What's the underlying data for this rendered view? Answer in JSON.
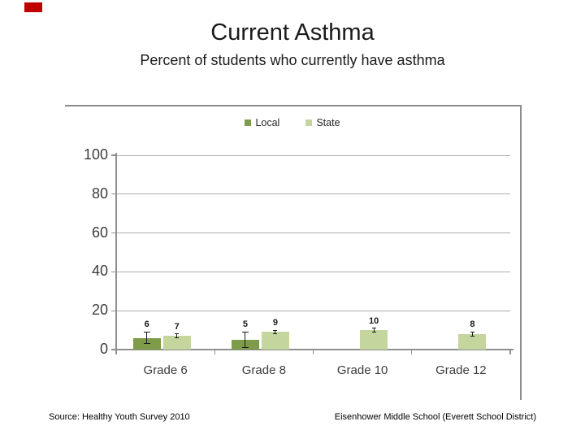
{
  "slide": {
    "title": "Current Asthma",
    "subtitle": "Percent of students who currently have asthma",
    "footer_left": "Source: Healthy Youth Survey 2010",
    "footer_right": "Eisenhower Middle School (Everett School District)",
    "corner_accent_color": "#C00000"
  },
  "chart_data": {
    "type": "bar",
    "title": "Current Asthma",
    "categories": [
      "Grade 6",
      "Grade 8",
      "Grade 10",
      "Grade 12"
    ],
    "series": [
      {
        "name": "Local",
        "color": "#7E9B49",
        "values": [
          6,
          5,
          null,
          null
        ],
        "errors": [
          3,
          4,
          null,
          null
        ]
      },
      {
        "name": "State",
        "color": "#C4D59E",
        "values": [
          7,
          9,
          10,
          8
        ],
        "errors": [
          1,
          1,
          1,
          1
        ]
      }
    ],
    "xlabel": "",
    "ylabel": "",
    "ylim": [
      0,
      100
    ],
    "yticks": [
      0,
      20,
      40,
      60,
      80,
      100
    ],
    "grid": true,
    "legend_position": "top-center",
    "frame_border_color": "#8C8C8C",
    "axis_color": "#8F8F8F",
    "grid_color": "#ACACAC",
    "tick_label_color": "#3D3D3D",
    "bar_label_color": "#1A1A1A"
  }
}
